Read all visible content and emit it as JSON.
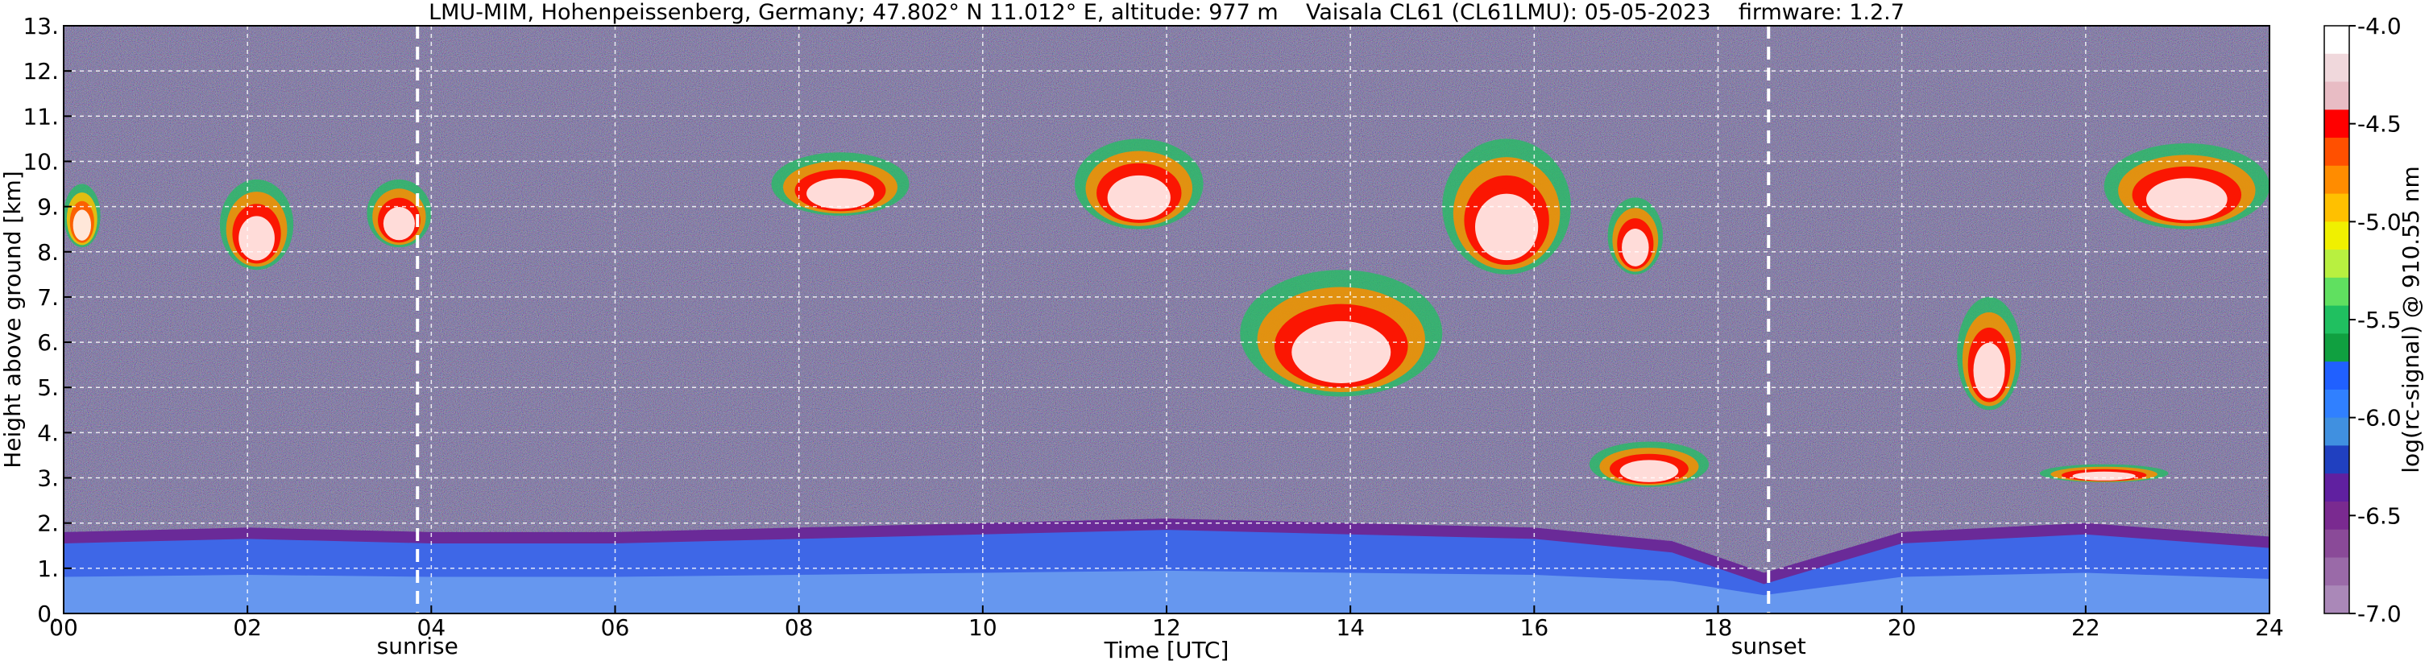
{
  "chart_data": {
    "type": "heatmap",
    "title": "LMU-MIM, Hohenpeissenberg, Germany; 47.802° N 11.012° E, altitude: 977 m    Vaisala CL61 (CL61LMU): 05-05-2023    firmware: 1.2.7",
    "xlabel": "Time [UTC]",
    "ylabel": "Height above ground [km]",
    "xlim": [
      0,
      24
    ],
    "ylim": [
      0,
      13
    ],
    "x_ticks": [
      "00",
      "02",
      "04",
      "06",
      "08",
      "10",
      "12",
      "14",
      "16",
      "18",
      "20",
      "22",
      "24"
    ],
    "y_ticks": [
      "0.",
      "1.",
      "2.",
      "3.",
      "4.",
      "5.",
      "6.",
      "7.",
      "8.",
      "9.",
      "10.",
      "11.",
      "12.",
      "13."
    ],
    "grid": true,
    "colorbar": {
      "label": "log(rc-signal) @ 910.55 nm",
      "range": [
        -7.0,
        -4.0
      ],
      "ticks": [
        "-4.0",
        "-4.5",
        "-5.0",
        "-5.5",
        "-6.0",
        "-6.5",
        "-7.0"
      ],
      "colors": [
        "#ffffff",
        "#f0d8dc",
        "#e8bcc4",
        "#ff0000",
        "#ff5000",
        "#ff8c00",
        "#ffc000",
        "#f0f000",
        "#b8f040",
        "#60e060",
        "#20c060",
        "#10a040",
        "#2060ff",
        "#3080ff",
        "#4090e0",
        "#2040c0",
        "#6020a0",
        "#7a2a90",
        "#8a4a98",
        "#9a6aa8",
        "#aa88b8"
      ]
    },
    "markers": [
      {
        "label": "sunrise",
        "x": 3.85
      },
      {
        "label": "sunset",
        "x": 18.55
      }
    ],
    "cloud_layers": [
      {
        "x_start": 0.0,
        "x_end": 0.4,
        "y_bottom": 8.1,
        "y_top": 9.5,
        "level": "mid"
      },
      {
        "x_start": 1.7,
        "x_end": 2.5,
        "y_bottom": 7.6,
        "y_top": 9.6,
        "level": "high"
      },
      {
        "x_start": 3.3,
        "x_end": 4.0,
        "y_bottom": 8.1,
        "y_top": 9.6,
        "level": "high"
      },
      {
        "x_start": 7.7,
        "x_end": 9.2,
        "y_bottom": 8.8,
        "y_top": 10.2,
        "level": "high"
      },
      {
        "x_start": 11.0,
        "x_end": 12.4,
        "y_bottom": 8.5,
        "y_top": 10.5,
        "level": "high"
      },
      {
        "x_start": 12.8,
        "x_end": 15.0,
        "y_bottom": 4.8,
        "y_top": 7.6,
        "level": "high"
      },
      {
        "x_start": 15.0,
        "x_end": 16.4,
        "y_bottom": 7.5,
        "y_top": 10.5,
        "level": "high"
      },
      {
        "x_start": 16.8,
        "x_end": 17.4,
        "y_bottom": 7.5,
        "y_top": 9.2,
        "level": "high"
      },
      {
        "x_start": 20.6,
        "x_end": 21.3,
        "y_bottom": 4.5,
        "y_top": 7.0,
        "level": "high"
      },
      {
        "x_start": 22.2,
        "x_end": 24.0,
        "y_bottom": 8.5,
        "y_top": 10.4,
        "level": "high"
      },
      {
        "x_start": 16.6,
        "x_end": 17.9,
        "y_bottom": 2.8,
        "y_top": 3.8,
        "level": "high"
      },
      {
        "x_start": 21.5,
        "x_end": 22.9,
        "y_bottom": 2.9,
        "y_top": 3.3,
        "level": "high"
      }
    ],
    "boundary_layer": [
      {
        "x": 0.0,
        "top": 1.8
      },
      {
        "x": 2.0,
        "top": 1.9
      },
      {
        "x": 4.0,
        "top": 1.8
      },
      {
        "x": 6.0,
        "top": 1.8
      },
      {
        "x": 8.0,
        "top": 1.9
      },
      {
        "x": 10.0,
        "top": 2.0
      },
      {
        "x": 12.0,
        "top": 2.1
      },
      {
        "x": 14.0,
        "top": 2.0
      },
      {
        "x": 16.0,
        "top": 1.9
      },
      {
        "x": 17.5,
        "top": 1.6
      },
      {
        "x": 18.5,
        "top": 0.9
      },
      {
        "x": 20.0,
        "top": 1.8
      },
      {
        "x": 22.0,
        "top": 2.0
      },
      {
        "x": 24.0,
        "top": 1.7
      }
    ]
  }
}
